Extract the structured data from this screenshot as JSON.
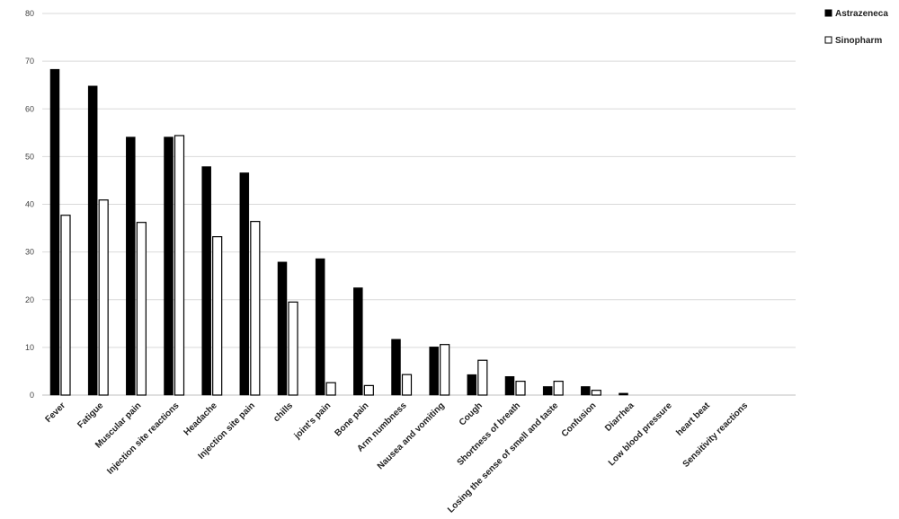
{
  "chart_data": {
    "type": "bar",
    "title": "",
    "xlabel": "",
    "ylabel": "",
    "ylim": [
      0,
      80
    ],
    "yticks": [
      0,
      10,
      20,
      30,
      40,
      50,
      60,
      70,
      80
    ],
    "grid": true,
    "legend_position": "top-right",
    "categories": [
      "Fever",
      "Fatigue",
      "Muscular pain",
      "Injection site reactions",
      "Headache",
      "Injection site pain",
      "chills",
      "joint's pain",
      "Bone pain",
      "Arm numbness",
      "Nausea and vomiting",
      "Cough",
      "Shortness of breath",
      "Losing the sense of smell and taste",
      "Confusion",
      "Diarrhea",
      "Low blood pressure",
      "heart beat",
      "Sensitivity reactions"
    ],
    "series": [
      {
        "name": "Astrazeneca",
        "color": "#000000",
        "style": "filled",
        "values": [
          68.3,
          64.8,
          54.1,
          54.1,
          47.9,
          46.6,
          27.9,
          28.6,
          22.5,
          11.7,
          10.1,
          4.3,
          3.9,
          1.8,
          1.8,
          0.4,
          0,
          0,
          0
        ]
      },
      {
        "name": "Sinopharm",
        "color": "#ffffff",
        "style": "outlined",
        "values": [
          37.7,
          40.9,
          36.2,
          54.4,
          33.2,
          36.4,
          19.5,
          2.6,
          2.0,
          4.3,
          10.6,
          7.3,
          2.9,
          2.9,
          1.0,
          0,
          0,
          0,
          0
        ]
      }
    ]
  }
}
